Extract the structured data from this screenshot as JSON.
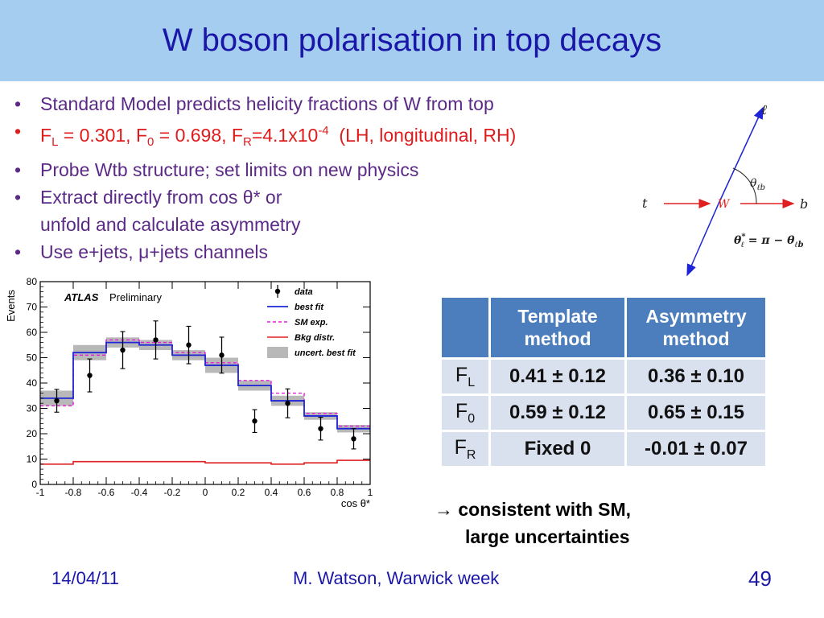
{
  "slide": {
    "title": "W boson polarisation in top decays",
    "bullet_marker": "•",
    "bullets": {
      "b1": "Standard Model predicts helicity fractions of W from top",
      "b2": {
        "fl": "F",
        "fl_sub": "L",
        "eq1": " = 0.301, F",
        "f0_sub": "0",
        "eq2": " = 0.698, F",
        "fr_sub": "R",
        "eq3": "=4.1x10",
        "exp": "-4",
        "tail": "  (LH, longitudinal, RH)"
      },
      "b3": "Probe Wtb structure; set limits on new physics",
      "b4_line1": "Extract directly from cos θ* or",
      "b4_line2": "unfold and calculate asymmetry",
      "b5": "Use e+jets, μ+jets channels"
    },
    "conclusion": {
      "arrow": "→",
      "line1": "consistent with SM,",
      "line2": "large uncertainties"
    },
    "footer": {
      "date": "14/04/11",
      "author": "M. Watson, Warwick week",
      "page": "49"
    }
  },
  "diagram": {
    "ell": "ℓ",
    "t": "t",
    "W": "W",
    "b": "b",
    "theta": "θ",
    "theta_sub": "ℓb",
    "formula_lhs": "θ",
    "formula_lhs_sub": "ℓ",
    "formula_lhs_sup": "*",
    "formula_rhs": " = π − θ",
    "formula_rhs_sub": "ℓb"
  },
  "results_table": {
    "headers": {
      "template_1": "Template",
      "template_2": "method",
      "asym_1": "Asymmetry",
      "asym_2": "method"
    },
    "rows": [
      {
        "label": "F",
        "label_sub": "L",
        "template": "0.41 ± 0.12",
        "asymmetry": "0.36 ± 0.10"
      },
      {
        "label": "F",
        "label_sub": "0",
        "template": "0.59 ± 0.12",
        "asymmetry": "0.65 ± 0.15"
      },
      {
        "label": "F",
        "label_sub": "R",
        "template": "Fixed 0",
        "asymmetry": "-0.01 ± 0.07"
      }
    ]
  },
  "chart_data": {
    "type": "line",
    "ylabel": "Events",
    "xlabel": "cos θ*",
    "experiment": "ATLAS",
    "status": "Preliminary",
    "xlim": [
      -1,
      1
    ],
    "ylim": [
      0,
      80
    ],
    "x_ticks": [
      "-1",
      "-0.8",
      "-0.6",
      "-0.4",
      "-0.2",
      "0",
      "0.2",
      "0.4",
      "0.6",
      "0.8",
      "1"
    ],
    "y_ticks": [
      "0",
      "10",
      "20",
      "30",
      "40",
      "50",
      "60",
      "70",
      "80"
    ],
    "bin_edges": [
      -1,
      -0.8,
      -0.6,
      -0.4,
      -0.2,
      0,
      0.2,
      0.4,
      0.6,
      0.8,
      1
    ],
    "bin_centers": [
      -0.9,
      -0.7,
      -0.5,
      -0.3,
      -0.1,
      0.1,
      0.3,
      0.5,
      0.7,
      0.9
    ],
    "legend_position": "top-right",
    "legend": [
      "data",
      "best fit",
      "SM exp.",
      "Bkg distr.",
      "uncert. best fit"
    ],
    "colors": {
      "data": "#000000",
      "best_fit": "#1d24d6",
      "sm_exp": "#e51bd9",
      "bkg": "#e02020",
      "band": "#b8b8b8"
    },
    "series": [
      {
        "name": "data",
        "style": "points",
        "values": [
          33,
          43,
          53,
          57,
          55,
          51,
          25,
          32,
          22,
          18
        ],
        "errors": [
          4.5,
          6.5,
          7.3,
          7.5,
          7.4,
          7.1,
          4.5,
          5.7,
          4.5,
          4
        ]
      },
      {
        "name": "best fit",
        "style": "step",
        "values": [
          34,
          52,
          56,
          55,
          51,
          47,
          39,
          33,
          27,
          22
        ]
      },
      {
        "name": "SM exp.",
        "style": "step",
        "values": [
          31,
          51,
          57,
          56,
          52,
          48,
          41,
          36,
          28,
          23
        ]
      },
      {
        "name": "Bkg distr.",
        "style": "step",
        "values": [
          8,
          9,
          9,
          9,
          9,
          8.5,
          8.5,
          8,
          8.5,
          9.5
        ]
      },
      {
        "name": "uncert. best fit",
        "style": "band",
        "values": [
          34,
          52,
          56,
          55,
          51,
          47,
          39,
          33,
          27,
          22
        ],
        "half_width": [
          3,
          3,
          2,
          2,
          2,
          3,
          2,
          2,
          1.5,
          1.5
        ]
      }
    ]
  }
}
